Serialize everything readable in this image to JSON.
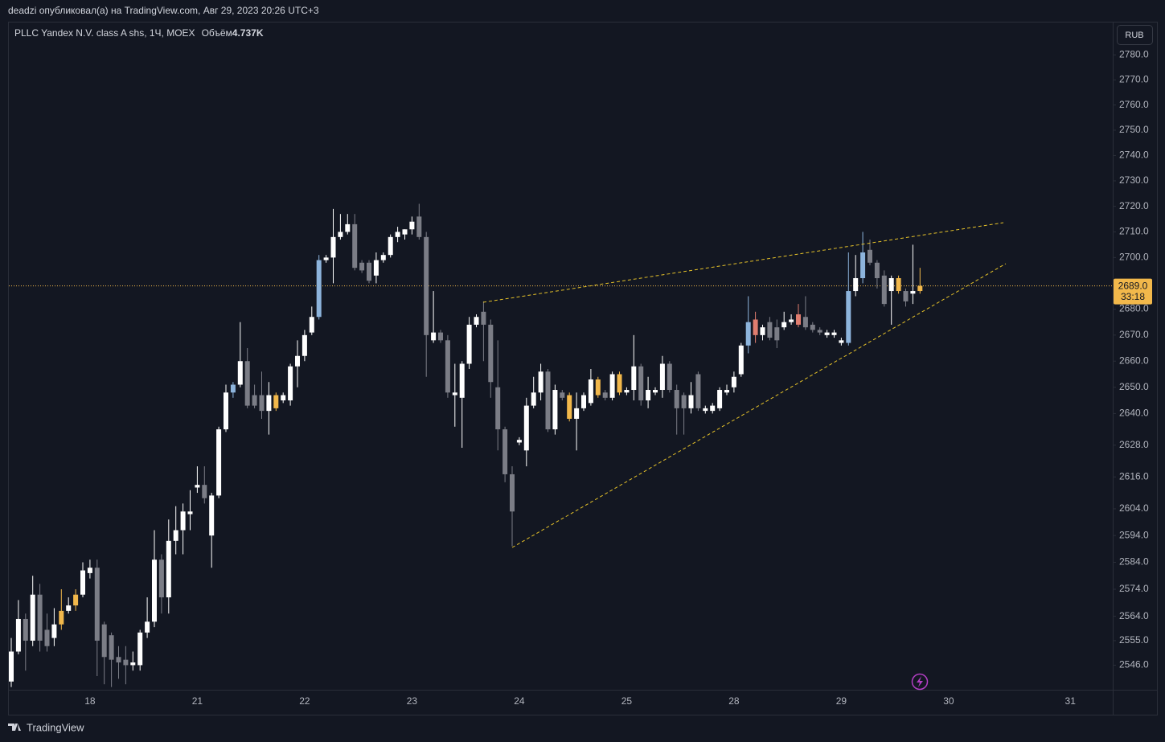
{
  "header": "deadzi опубликовал(а) на TradingView.com, Авг 29, 2023 20:26 UTC+3",
  "footer": "TradingView",
  "chart_data": {
    "type": "candlestick",
    "title": "PLLC Yandex N.V. class A shs, 1Ч, MOEX",
    "volume_name": "Объём",
    "volume": "4.737K",
    "currency": "RUB",
    "log_scale": true,
    "grid": false,
    "ylim": [
      2537,
      2793
    ],
    "yticks": [
      {
        "value": 2780,
        "label": "2780.0"
      },
      {
        "value": 2770,
        "label": "2770.0"
      },
      {
        "value": 2760,
        "label": "2760.0"
      },
      {
        "value": 2750,
        "label": "2750.0"
      },
      {
        "value": 2740,
        "label": "2740.0"
      },
      {
        "value": 2730,
        "label": "2730.0"
      },
      {
        "value": 2720,
        "label": "2720.0"
      },
      {
        "value": 2710,
        "label": "2710.0"
      },
      {
        "value": 2700,
        "label": "2700.0"
      },
      {
        "value": 2680,
        "label": "2680.0"
      },
      {
        "value": 2670,
        "label": "2670.0"
      },
      {
        "value": 2660,
        "label": "2660.0"
      },
      {
        "value": 2650,
        "label": "2650.0"
      },
      {
        "value": 2640,
        "label": "2640.0"
      },
      {
        "value": 2628,
        "label": "2628.0"
      },
      {
        "value": 2616,
        "label": "2616.0"
      },
      {
        "value": 2604,
        "label": "2604.0"
      },
      {
        "value": 2594,
        "label": "2594.0"
      },
      {
        "value": 2584,
        "label": "2584.0"
      },
      {
        "value": 2574,
        "label": "2574.0"
      },
      {
        "value": 2564,
        "label": "2564.0"
      },
      {
        "value": 2555,
        "label": "2555.0"
      },
      {
        "value": 2546,
        "label": "2546.0"
      }
    ],
    "last_price": {
      "value": 2689,
      "label": "2689.0"
    },
    "countdown": "33:18",
    "last_price_color": "#f2b84b",
    "categories": [
      null,
      null,
      null,
      null,
      null,
      null,
      null,
      null,
      null,
      null,
      null,
      "18",
      null,
      null,
      null,
      null,
      null,
      null,
      null,
      null,
      null,
      null,
      null,
      null,
      null,
      null,
      "21",
      null,
      null,
      null,
      null,
      null,
      null,
      null,
      null,
      null,
      null,
      null,
      null,
      null,
      null,
      "22",
      null,
      null,
      null,
      null,
      null,
      null,
      null,
      null,
      null,
      null,
      null,
      null,
      null,
      null,
      "23",
      null,
      null,
      null,
      null,
      null,
      null,
      null,
      null,
      null,
      null,
      null,
      null,
      null,
      null,
      "24",
      null,
      null,
      null,
      null,
      null,
      null,
      null,
      null,
      null,
      null,
      null,
      null,
      null,
      null,
      "25",
      null,
      null,
      null,
      null,
      null,
      null,
      null,
      null,
      null,
      null,
      null,
      null,
      null,
      null,
      "28",
      null,
      null,
      null,
      null,
      null,
      null,
      null,
      null,
      null,
      null,
      null,
      null,
      null,
      null,
      "29",
      null,
      null,
      null,
      null,
      null,
      null,
      null,
      null,
      null,
      null,
      null,
      null,
      null,
      null,
      "30",
      null,
      null,
      null,
      null,
      null,
      null,
      null,
      null,
      null,
      null,
      null,
      null,
      null,
      null,
      null,
      null,
      "31"
    ],
    "open": [
      2540,
      2551,
      2563,
      2555,
      2572,
      2559,
      2556,
      2561,
      2566,
      2568,
      2572,
      2580,
      2582,
      2561,
      2557,
      2549,
      2548,
      2546,
      2546,
      2558,
      2562,
      2585,
      2571,
      2592,
      2596,
      2602,
      2612,
      2613,
      2594,
      2609,
      2634,
      2648,
      2651,
      2660,
      2647,
      2647,
      2641,
      2642,
      2645,
      2645,
      2658,
      2662,
      2671,
      2677,
      2699,
      2700,
      2708,
      2710,
      2713,
      2698,
      2698,
      2693,
      2699,
      2701,
      2708,
      2709,
      2711,
      2716,
      2708,
      2668,
      2671,
      2668,
      2647,
      2646,
      2659,
      2674,
      2679,
      2674,
      2650,
      2634,
      2617,
      2629,
      2626,
      2643,
      2648,
      2656,
      2634,
      2648,
      2638,
      2638,
      2642,
      2644,
      2647,
      2648,
      2646,
      2648,
      2648,
      2649,
      2658,
      2645,
      2648,
      2649,
      2659,
      2649,
      2647,
      2642,
      2655,
      2641,
      2641,
      2642,
      2648,
      2650,
      2655,
      2666,
      2676,
      2670,
      2675,
      2673,
      2673,
      2675,
      2678,
      2677,
      2674,
      2672,
      2670,
      2670,
      2667,
      2667,
      2687,
      2692,
      2703,
      2698,
      2693,
      2687,
      2687,
      2687,
      2686,
      2687,
      null,
      null,
      null,
      null,
      null,
      null,
      null,
      null,
      null,
      null,
      null,
      null,
      null,
      null,
      null,
      null,
      null,
      null,
      null,
      null,
      null
    ],
    "high": [
      2556,
      2570,
      2565,
      2579,
      2576,
      2565,
      2567,
      2574,
      2571,
      2574,
      2584,
      2585,
      2585,
      2562,
      2558,
      2553,
      2553,
      2551,
      2559,
      2571,
      2596,
      2587,
      2600,
      2605,
      2606,
      2611,
      2620,
      2620,
      2610,
      2635,
      2651,
      2652,
      2675,
      2665,
      2651,
      2656,
      2652,
      2648,
      2648,
      2659,
      2668,
      2672,
      2681,
      2701,
      2701,
      2719,
      2717,
      2717,
      2717,
      2699,
      2699,
      2702,
      2702,
      2709,
      2712,
      2711,
      2716,
      2721,
      2710,
      2687,
      2672,
      2670,
      2659,
      2660,
      2677,
      2678,
      2683,
      2676,
      2668,
      2635,
      2620,
      2631,
      2646,
      2654,
      2659,
      2657,
      2651,
      2649,
      2648,
      2648,
      2648,
      2657,
      2654,
      2649,
      2656,
      2656,
      2650,
      2670,
      2659,
      2654,
      2650,
      2662,
      2660,
      2651,
      2648,
      2652,
      2656,
      2643,
      2644,
      2650,
      2651,
      2656,
      2667,
      2685,
      2679,
      2674,
      2677,
      2676,
      2679,
      2678,
      2682,
      2685,
      2675,
      2673,
      2672,
      2672,
      2669,
      2702,
      2701,
      2710,
      2707,
      2699,
      2695,
      2693,
      2693,
      2688,
      2705,
      2696,
      null,
      null,
      null,
      null,
      null,
      null,
      null,
      null,
      null,
      null,
      null,
      null,
      null,
      null,
      null,
      null,
      null,
      null,
      null,
      null,
      null
    ],
    "low": [
      2538,
      2550,
      2544,
      2553,
      2551,
      2551,
      2553,
      2559,
      2565,
      2566,
      2571,
      2578,
      2542,
      2539,
      2538,
      2541,
      2539,
      2544,
      2544,
      2556,
      2560,
      2565,
      2565,
      2587,
      2587,
      2596,
      2610,
      2606,
      2582,
      2608,
      2633,
      2646,
      2650,
      2642,
      2642,
      2638,
      2632,
      2641,
      2644,
      2643,
      2650,
      2660,
      2670,
      2676,
      2698,
      2690,
      2707,
      2709,
      2695,
      2694,
      2690,
      2690,
      2698,
      2700,
      2706,
      2707,
      2709,
      2707,
      2654,
      2667,
      2667,
      2646,
      2635,
      2627,
      2657,
      2673,
      2660,
      2646,
      2626,
      2614,
      2590,
      2628,
      2620,
      2642,
      2645,
      2633,
      2632,
      2645,
      2637,
      2626,
      2641,
      2643,
      2646,
      2645,
      2645,
      2647,
      2647,
      2645,
      2643,
      2642,
      2647,
      2646,
      2648,
      2632,
      2632,
      2640,
      2641,
      2640,
      2640,
      2641,
      2647,
      2648,
      2654,
      2663,
      2667,
      2668,
      2668,
      2665,
      2672,
      2674,
      2673,
      2672,
      2671,
      2670,
      2669,
      2669,
      2666,
      2666,
      2685,
      2690,
      2697,
      2688,
      2681,
      2674,
      2686,
      2681,
      2682,
      2686,
      null,
      null,
      null,
      null,
      null,
      null,
      null,
      null,
      null,
      null,
      null,
      null,
      null,
      null,
      null,
      null,
      null,
      null,
      null,
      null,
      null
    ],
    "close": [
      2551,
      2563,
      2555,
      2572,
      2555,
      2553,
      2561,
      2566,
      2568,
      2572,
      2581,
      2582,
      2555,
      2549,
      2548,
      2547,
      2546,
      2547,
      2558,
      2562,
      2585,
      2571,
      2592,
      2596,
      2603,
      2603,
      2613,
      2608,
      2609,
      2634,
      2648,
      2651,
      2660,
      2643,
      2643,
      2641,
      2647,
      2647,
      2647,
      2658,
      2662,
      2670,
      2677,
      2699,
      2700,
      2708,
      2710,
      2713,
      2696,
      2695,
      2691,
      2699,
      2701,
      2708,
      2710,
      2711,
      2714,
      2708,
      2670,
      2671,
      2668,
      2648,
      2648,
      2659,
      2674,
      2677,
      2674,
      2652,
      2634,
      2617,
      2603,
      2630,
      2643,
      2648,
      2656,
      2634,
      2649,
      2646,
      2647,
      2642,
      2647,
      2653,
      2653,
      2646,
      2655,
      2655,
      2649,
      2658,
      2645,
      2649,
      2649,
      2659,
      2649,
      2642,
      2642,
      2647,
      2642,
      2642,
      2643,
      2649,
      2649,
      2654,
      2666,
      2675,
      2670,
      2673,
      2669,
      2668,
      2675,
      2676,
      2674,
      2673,
      2672,
      2671,
      2671,
      2671,
      2668,
      2687,
      2692,
      2702,
      2698,
      2692,
      2682,
      2692,
      2692,
      2683,
      2687,
      2689,
      null,
      null,
      null,
      null,
      null,
      null,
      null,
      null,
      null,
      null,
      null,
      null,
      null,
      null,
      null,
      null,
      null,
      null,
      null,
      null,
      null
    ],
    "colors": [
      "#ffffff",
      "#ffffff",
      "#7b7d86",
      "#ffffff",
      "#7b7d86",
      "#7b7d86",
      "#ffffff",
      "#f2b84b",
      "#ffffff",
      "#f2b84b",
      "#ffffff",
      "#ffffff",
      "#7b7d86",
      "#7b7d86",
      "#7b7d86",
      "#7b7d86",
      "#7b7d86",
      "#ffffff",
      "#ffffff",
      "#ffffff",
      "#ffffff",
      "#7b7d86",
      "#ffffff",
      "#ffffff",
      "#ffffff",
      "#ffffff",
      "#ffffff",
      "#7b7d86",
      "#ffffff",
      "#ffffff",
      "#ffffff",
      "#8db4dc",
      "#ffffff",
      "#7b7d86",
      "#7b7d86",
      "#7b7d86",
      "#ffffff",
      "#f2b84b",
      "#ffffff",
      "#ffffff",
      "#ffffff",
      "#ffffff",
      "#ffffff",
      "#8db4dc",
      "#ffffff",
      "#ffffff",
      "#ffffff",
      "#ffffff",
      "#7b7d86",
      "#7b7d86",
      "#7b7d86",
      "#ffffff",
      "#ffffff",
      "#ffffff",
      "#ffffff",
      "#ffffff",
      "#ffffff",
      "#7b7d86",
      "#7b7d86",
      "#ffffff",
      "#7b7d86",
      "#7b7d86",
      "#ffffff",
      "#ffffff",
      "#ffffff",
      "#ffffff",
      "#7b7d86",
      "#7b7d86",
      "#7b7d86",
      "#7b7d86",
      "#7b7d86",
      "#ffffff",
      "#ffffff",
      "#ffffff",
      "#ffffff",
      "#7b7d86",
      "#ffffff",
      "#7b7d86",
      "#f2b84b",
      "#ffffff",
      "#ffffff",
      "#ffffff",
      "#f2b84b",
      "#7b7d86",
      "#ffffff",
      "#f2b84b",
      "#ffffff",
      "#ffffff",
      "#7b7d86",
      "#ffffff",
      "#ffffff",
      "#ffffff",
      "#7b7d86",
      "#7b7d86",
      "#7b7d86",
      "#ffffff",
      "#7b7d86",
      "#ffffff",
      "#ffffff",
      "#ffffff",
      "#ffffff",
      "#ffffff",
      "#ffffff",
      "#8db4dc",
      "#e07d6f",
      "#ffffff",
      "#7b7d86",
      "#7b7d86",
      "#ffffff",
      "#ffffff",
      "#e07d6f",
      "#7b7d86",
      "#7b7d86",
      "#7b7d86",
      "#ffffff",
      "#ffffff",
      "#ffffff",
      "#8db4dc",
      "#ffffff",
      "#8db4dc",
      "#7b7d86",
      "#7b7d86",
      "#7b7d86",
      "#ffffff",
      "#f2b84b",
      "#7b7d86",
      "#ffffff",
      "#f2b84b",
      null,
      null,
      null,
      null,
      null,
      null,
      null,
      null,
      null,
      null,
      null,
      null,
      null,
      null,
      null,
      null,
      null,
      null,
      null,
      null,
      null
    ]
  }
}
